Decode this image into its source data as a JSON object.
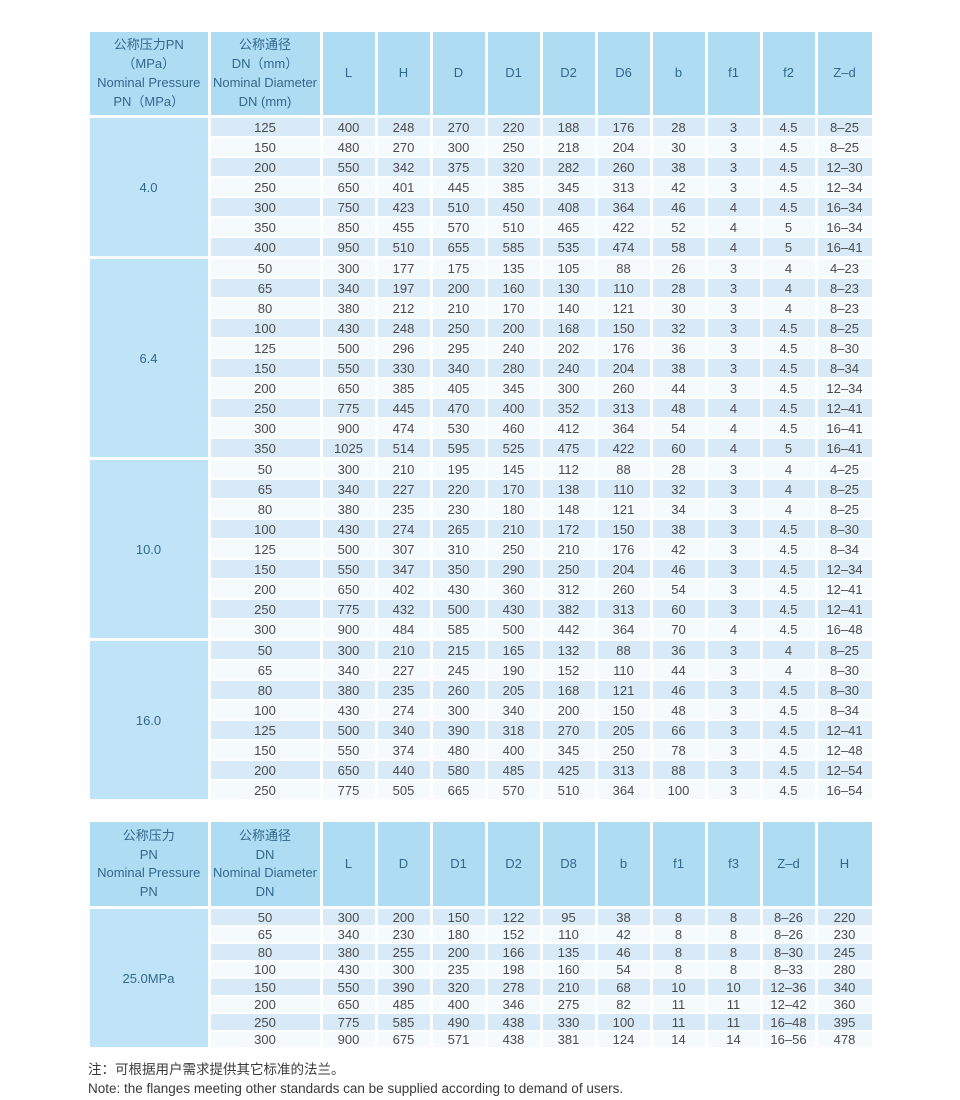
{
  "colors": {
    "header_bg": "#aedcf2",
    "group_bg": "#bfe4f7",
    "row_blue": "#d8eaf7",
    "row_light": "#f5fafd",
    "header_text": "#33688e",
    "body_text": "#4b4b4b"
  },
  "notes": {
    "cn": "注：可根据用户需求提供其它标准的法兰。",
    "en": "Note: the flanges meeting other standards can be supplied according to demand of users."
  },
  "table1": {
    "pressure_header": [
      "公称压力PN",
      "（MPa）",
      "Nominal Pressure",
      "PN（MPa）"
    ],
    "dn_header": [
      "公称通径",
      "DN（mm）",
      "Nominal Diameter",
      "DN (mm)"
    ],
    "columns": [
      "L",
      "H",
      "D",
      "D1",
      "D2",
      "D6",
      "b",
      "f1",
      "f2",
      "Z–d"
    ],
    "groups": [
      {
        "pressure": "4.0",
        "rows": [
          {
            "dn": "125",
            "values": [
              "400",
              "248",
              "270",
              "220",
              "188",
              "176",
              "28",
              "3",
              "4.5",
              "8–25"
            ]
          },
          {
            "dn": "150",
            "values": [
              "480",
              "270",
              "300",
              "250",
              "218",
              "204",
              "30",
              "3",
              "4.5",
              "8–25"
            ]
          },
          {
            "dn": "200",
            "values": [
              "550",
              "342",
              "375",
              "320",
              "282",
              "260",
              "38",
              "3",
              "4.5",
              "12–30"
            ]
          },
          {
            "dn": "250",
            "values": [
              "650",
              "401",
              "445",
              "385",
              "345",
              "313",
              "42",
              "3",
              "4.5",
              "12–34"
            ]
          },
          {
            "dn": "300",
            "values": [
              "750",
              "423",
              "510",
              "450",
              "408",
              "364",
              "46",
              "4",
              "4.5",
              "16–34"
            ]
          },
          {
            "dn": "350",
            "values": [
              "850",
              "455",
              "570",
              "510",
              "465",
              "422",
              "52",
              "4",
              "5",
              "16–34"
            ]
          },
          {
            "dn": "400",
            "values": [
              "950",
              "510",
              "655",
              "585",
              "535",
              "474",
              "58",
              "4",
              "5",
              "16–41"
            ]
          }
        ]
      },
      {
        "pressure": "6.4",
        "rows": [
          {
            "dn": "50",
            "values": [
              "300",
              "177",
              "175",
              "135",
              "105",
              "88",
              "26",
              "3",
              "4",
              "4–23"
            ]
          },
          {
            "dn": "65",
            "values": [
              "340",
              "197",
              "200",
              "160",
              "130",
              "110",
              "28",
              "3",
              "4",
              "8–23"
            ]
          },
          {
            "dn": "80",
            "values": [
              "380",
              "212",
              "210",
              "170",
              "140",
              "121",
              "30",
              "3",
              "4",
              "8–23"
            ]
          },
          {
            "dn": "100",
            "values": [
              "430",
              "248",
              "250",
              "200",
              "168",
              "150",
              "32",
              "3",
              "4.5",
              "8–25"
            ]
          },
          {
            "dn": "125",
            "values": [
              "500",
              "296",
              "295",
              "240",
              "202",
              "176",
              "36",
              "3",
              "4.5",
              "8–30"
            ]
          },
          {
            "dn": "150",
            "values": [
              "550",
              "330",
              "340",
              "280",
              "240",
              "204",
              "38",
              "3",
              "4.5",
              "8–34"
            ]
          },
          {
            "dn": "200",
            "values": [
              "650",
              "385",
              "405",
              "345",
              "300",
              "260",
              "44",
              "3",
              "4.5",
              "12–34"
            ]
          },
          {
            "dn": "250",
            "values": [
              "775",
              "445",
              "470",
              "400",
              "352",
              "313",
              "48",
              "4",
              "4.5",
              "12–41"
            ]
          },
          {
            "dn": "300",
            "values": [
              "900",
              "474",
              "530",
              "460",
              "412",
              "364",
              "54",
              "4",
              "4.5",
              "16–41"
            ]
          },
          {
            "dn": "350",
            "values": [
              "1025",
              "514",
              "595",
              "525",
              "475",
              "422",
              "60",
              "4",
              "5",
              "16–41"
            ]
          }
        ]
      },
      {
        "pressure": "10.0",
        "rows": [
          {
            "dn": "50",
            "values": [
              "300",
              "210",
              "195",
              "145",
              "112",
              "88",
              "28",
              "3",
              "4",
              "4–25"
            ]
          },
          {
            "dn": "65",
            "values": [
              "340",
              "227",
              "220",
              "170",
              "138",
              "110",
              "32",
              "3",
              "4",
              "8–25"
            ]
          },
          {
            "dn": "80",
            "values": [
              "380",
              "235",
              "230",
              "180",
              "148",
              "121",
              "34",
              "3",
              "4",
              "8–25"
            ]
          },
          {
            "dn": "100",
            "values": [
              "430",
              "274",
              "265",
              "210",
              "172",
              "150",
              "38",
              "3",
              "4.5",
              "8–30"
            ]
          },
          {
            "dn": "125",
            "values": [
              "500",
              "307",
              "310",
              "250",
              "210",
              "176",
              "42",
              "3",
              "4.5",
              "8–34"
            ]
          },
          {
            "dn": "150",
            "values": [
              "550",
              "347",
              "350",
              "290",
              "250",
              "204",
              "46",
              "3",
              "4.5",
              "12–34"
            ]
          },
          {
            "dn": "200",
            "values": [
              "650",
              "402",
              "430",
              "360",
              "312",
              "260",
              "54",
              "3",
              "4.5",
              "12–41"
            ]
          },
          {
            "dn": "250",
            "values": [
              "775",
              "432",
              "500",
              "430",
              "382",
              "313",
              "60",
              "3",
              "4.5",
              "12–41"
            ]
          },
          {
            "dn": "300",
            "values": [
              "900",
              "484",
              "585",
              "500",
              "442",
              "364",
              "70",
              "4",
              "4.5",
              "16–48"
            ]
          }
        ]
      },
      {
        "pressure": "16.0",
        "rows": [
          {
            "dn": "50",
            "values": [
              "300",
              "210",
              "215",
              "165",
              "132",
              "88",
              "36",
              "3",
              "4",
              "8–25"
            ]
          },
          {
            "dn": "65",
            "values": [
              "340",
              "227",
              "245",
              "190",
              "152",
              "110",
              "44",
              "3",
              "4",
              "8–30"
            ]
          },
          {
            "dn": "80",
            "values": [
              "380",
              "235",
              "260",
              "205",
              "168",
              "121",
              "46",
              "3",
              "4.5",
              "8–30"
            ]
          },
          {
            "dn": "100",
            "values": [
              "430",
              "274",
              "300",
              "340",
              "200",
              "150",
              "48",
              "3",
              "4.5",
              "8–34"
            ]
          },
          {
            "dn": "125",
            "values": [
              "500",
              "340",
              "390",
              "318",
              "270",
              "205",
              "66",
              "3",
              "4.5",
              "12–41"
            ]
          },
          {
            "dn": "150",
            "values": [
              "550",
              "374",
              "480",
              "400",
              "345",
              "250",
              "78",
              "3",
              "4.5",
              "12–48"
            ]
          },
          {
            "dn": "200",
            "values": [
              "650",
              "440",
              "580",
              "485",
              "425",
              "313",
              "88",
              "3",
              "4.5",
              "12–54"
            ]
          },
          {
            "dn": "250",
            "values": [
              "775",
              "505",
              "665",
              "570",
              "510",
              "364",
              "100",
              "3",
              "4.5",
              "16–54"
            ]
          }
        ]
      }
    ]
  },
  "table2": {
    "pressure_header": [
      "公称压力",
      "PN",
      "Nominal Pressure",
      "PN"
    ],
    "dn_header": [
      "公称通径",
      "DN",
      "Nominal Diameter",
      "DN"
    ],
    "columns": [
      "L",
      "D",
      "D1",
      "D2",
      "D8",
      "b",
      "f1",
      "f3",
      "Z–d",
      "H"
    ],
    "groups": [
      {
        "pressure": "25.0MPa",
        "rows": [
          {
            "dn": "50",
            "values": [
              "300",
              "200",
              "150",
              "122",
              "95",
              "38",
              "8",
              "8",
              "8–26",
              "220"
            ]
          },
          {
            "dn": "65",
            "values": [
              "340",
              "230",
              "180",
              "152",
              "110",
              "42",
              "8",
              "8",
              "8–26",
              "230"
            ]
          },
          {
            "dn": "80",
            "values": [
              "380",
              "255",
              "200",
              "166",
              "135",
              "46",
              "8",
              "8",
              "8–30",
              "245"
            ]
          },
          {
            "dn": "100",
            "values": [
              "430",
              "300",
              "235",
              "198",
              "160",
              "54",
              "8",
              "8",
              "8–33",
              "280"
            ]
          },
          {
            "dn": "150",
            "values": [
              "550",
              "390",
              "320",
              "278",
              "210",
              "68",
              "10",
              "10",
              "12–36",
              "340"
            ]
          },
          {
            "dn": "200",
            "values": [
              "650",
              "485",
              "400",
              "346",
              "275",
              "82",
              "11",
              "11",
              "12–42",
              "360"
            ]
          },
          {
            "dn": "250",
            "values": [
              "775",
              "585",
              "490",
              "438",
              "330",
              "100",
              "11",
              "11",
              "16–48",
              "395"
            ]
          },
          {
            "dn": "300",
            "values": [
              "900",
              "675",
              "571",
              "438",
              "381",
              "124",
              "14",
              "14",
              "16–56",
              "478"
            ]
          }
        ]
      }
    ]
  }
}
